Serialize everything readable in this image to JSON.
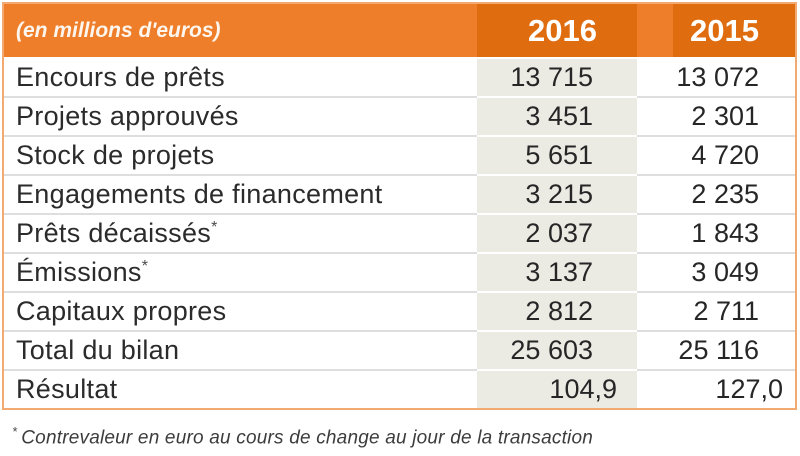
{
  "table": {
    "unit_label": "(en millions d'euros)",
    "columns": [
      "2016",
      "2015"
    ],
    "rows": [
      {
        "label": "Encours de prêts",
        "sup": "",
        "v2016": "13 715",
        "v2015": "13 072"
      },
      {
        "label": "Projets approuvés",
        "sup": "",
        "v2016": "3 451",
        "v2015": "2 301"
      },
      {
        "label": "Stock de projets",
        "sup": "",
        "v2016": "5 651",
        "v2015": "4 720"
      },
      {
        "label": "Engagements de financement",
        "sup": "",
        "v2016": "3 215",
        "v2015": "2 235"
      },
      {
        "label": "Prêts décaissés",
        "sup": "*",
        "v2016": "2 037",
        "v2015": "1 843"
      },
      {
        "label": "Émissions",
        "sup": "*",
        "v2016": "3 137",
        "v2015": "3 049"
      },
      {
        "label": "Capitaux propres",
        "sup": "",
        "v2016": "2 812",
        "v2015": "2 711"
      },
      {
        "label": "Total du bilan",
        "sup": "",
        "v2016": "25 603",
        "v2015": "25 116"
      },
      {
        "label": "Résultat",
        "sup": "",
        "v2016": "104,9",
        "v2015": "127,0"
      }
    ]
  },
  "footnote": {
    "marker": "*",
    "text": "Contrevaleur en euro au cours de change au jour de la transaction"
  },
  "colors": {
    "header_light_orange": "#EE7E29",
    "header_dark_orange": "#E06C10",
    "column_2016_bg": "#EBEAE3",
    "row_separator": "#DEDEDE",
    "table_border": "#F2AA72",
    "text": "#2B2B2B",
    "header_text": "#FFFFFF"
  },
  "chart_data": {
    "type": "table",
    "title": "(en millions d'euros)",
    "columns": [
      "(en millions d'euros)",
      "2016",
      "2015"
    ],
    "rows": [
      [
        "Encours de prêts",
        "13 715",
        "13 072"
      ],
      [
        "Projets approuvés",
        "3 451",
        "2 301"
      ],
      [
        "Stock de projets",
        "5 651",
        "4 720"
      ],
      [
        "Engagements de financement",
        "3 215",
        "2 235"
      ],
      [
        "Prêts décaissés*",
        "2 037",
        "1 843"
      ],
      [
        "Émissions*",
        "3 137",
        "3 049"
      ],
      [
        "Capitaux propres",
        "2 812",
        "2 711"
      ],
      [
        "Total du bilan",
        "25 603",
        "25 116"
      ],
      [
        "Résultat",
        "104,9",
        "127,0"
      ]
    ]
  }
}
